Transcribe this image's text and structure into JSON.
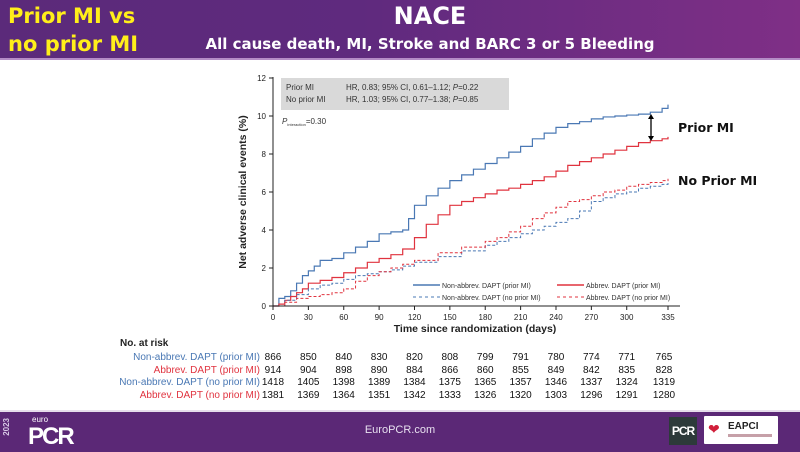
{
  "header": {
    "left_title_line1": "Prior MI vs",
    "left_title_line2": "no prior MI",
    "title": "NACE",
    "subtitle": "All cause death, MI, Stroke and BARC 3 or 5 Bleeding"
  },
  "colors": {
    "non_abbrev": "#4a78b4",
    "abbrev": "#e0333f",
    "header_bg": "#5b2a7a",
    "header_left_text": "#ffef1a",
    "footer_bg": "#5b2876"
  },
  "chart_data": {
    "type": "line",
    "subtype": "kaplan-meier cumulative incidence (step)",
    "xlabel": "Time since randomization (days)",
    "ylabel": "Net adverse clinical events (%)",
    "xlim": [
      0,
      335
    ],
    "ylim": [
      0,
      12
    ],
    "x_ticks": [
      0,
      30,
      60,
      90,
      120,
      150,
      180,
      210,
      240,
      270,
      300,
      335
    ],
    "y_ticks": [
      0,
      2,
      4,
      6,
      8,
      10,
      12
    ],
    "grid": false,
    "stats_box": [
      {
        "group": "Prior MI",
        "text": "HR, 0.83; 95% CI, 0.61–1.12; ",
        "p_label": "P",
        "p_value": "=0.22"
      },
      {
        "group": "No prior MI",
        "text": "HR, 1.03; 95% CI, 0.77–1.38; ",
        "p_label": "P",
        "p_value": "=0.85"
      }
    ],
    "p_interaction": {
      "label": "P",
      "subscript": "interaction",
      "value": "=0.30"
    },
    "annotations": [
      {
        "text": "Prior MI",
        "near": "right of prior MI curves, with double arrow between them"
      },
      {
        "text": "No Prior MI",
        "near": "right of no prior MI curves"
      }
    ],
    "legend": {
      "placement": "bottom-right",
      "entries": [
        {
          "label": "Non-abbrev. DAPT (prior MI)",
          "style": "solid",
          "color": "#4a78b4"
        },
        {
          "label": "Abbrev. DAPT (prior MI)",
          "style": "solid",
          "color": "#e0333f"
        },
        {
          "label": "Non-abbrev. DAPT (no prior MI)",
          "style": "dashed",
          "color": "#4a78b4"
        },
        {
          "label": "Abbrev. DAPT (no prior MI)",
          "style": "dashed",
          "color": "#e0333f"
        }
      ]
    },
    "series": [
      {
        "name": "Non-abbrev. DAPT (prior MI)",
        "style": "solid",
        "color": "#4a78b4",
        "x": [
          0,
          5,
          10,
          15,
          20,
          25,
          30,
          35,
          40,
          50,
          60,
          70,
          80,
          90,
          100,
          110,
          115,
          120,
          130,
          140,
          150,
          160,
          170,
          180,
          190,
          200,
          210,
          220,
          230,
          240,
          250,
          260,
          270,
          280,
          290,
          300,
          310,
          320,
          330,
          335
        ],
        "y": [
          0,
          0.4,
          0.5,
          0.8,
          1.2,
          1.6,
          1.85,
          2.1,
          2.4,
          2.5,
          2.8,
          3.1,
          3.4,
          3.8,
          3.9,
          4.0,
          4.6,
          5.3,
          5.8,
          6.2,
          6.6,
          6.9,
          7.2,
          7.5,
          7.8,
          8.1,
          8.4,
          8.8,
          9.1,
          9.4,
          9.6,
          9.7,
          9.85,
          9.95,
          10.0,
          10.05,
          10.1,
          10.2,
          10.4,
          10.6
        ]
      },
      {
        "name": "Abbrev. DAPT (prior MI)",
        "style": "solid",
        "color": "#e0333f",
        "x": [
          0,
          5,
          10,
          15,
          20,
          25,
          30,
          40,
          50,
          60,
          70,
          80,
          90,
          100,
          110,
          120,
          130,
          140,
          150,
          160,
          170,
          180,
          190,
          200,
          210,
          220,
          230,
          240,
          250,
          260,
          270,
          280,
          290,
          300,
          310,
          320,
          330,
          335
        ],
        "y": [
          0,
          0.1,
          0.3,
          0.5,
          0.7,
          0.9,
          1.2,
          1.35,
          1.5,
          1.75,
          2.0,
          2.3,
          2.5,
          2.7,
          3.0,
          3.6,
          4.3,
          4.8,
          5.3,
          5.5,
          5.7,
          5.9,
          6.1,
          6.2,
          6.4,
          6.6,
          6.8,
          7.1,
          7.4,
          7.6,
          7.8,
          8.0,
          8.2,
          8.4,
          8.6,
          8.7,
          8.8,
          8.9
        ]
      },
      {
        "name": "Non-abbrev. DAPT (no prior MI)",
        "style": "dashed",
        "color": "#4a78b4",
        "x": [
          0,
          10,
          20,
          30,
          40,
          50,
          60,
          70,
          80,
          90,
          100,
          110,
          120,
          140,
          160,
          180,
          190,
          200,
          210,
          220,
          230,
          240,
          250,
          260,
          270,
          280,
          290,
          300,
          310,
          320,
          330,
          335
        ],
        "y": [
          0,
          0.3,
          0.6,
          0.9,
          1.1,
          1.2,
          1.4,
          1.6,
          1.7,
          1.8,
          1.9,
          2.1,
          2.3,
          2.6,
          2.9,
          3.2,
          3.4,
          3.6,
          3.8,
          4.0,
          4.2,
          4.4,
          4.6,
          5.0,
          5.5,
          5.7,
          5.9,
          6.0,
          6.2,
          6.3,
          6.4,
          6.5
        ]
      },
      {
        "name": "Abbrev. DAPT (no prior MI)",
        "style": "dashed",
        "color": "#e0333f",
        "x": [
          0,
          10,
          20,
          30,
          40,
          50,
          60,
          70,
          80,
          90,
          100,
          110,
          120,
          140,
          160,
          180,
          190,
          200,
          210,
          220,
          230,
          240,
          250,
          260,
          270,
          280,
          290,
          300,
          310,
          320,
          330,
          335
        ],
        "y": [
          0,
          0.2,
          0.4,
          0.5,
          0.6,
          0.7,
          0.9,
          1.3,
          1.6,
          1.8,
          2.0,
          2.2,
          2.4,
          2.8,
          3.1,
          3.4,
          3.6,
          3.9,
          4.2,
          4.6,
          4.9,
          5.2,
          5.5,
          5.6,
          5.8,
          6.0,
          6.1,
          6.3,
          6.4,
          6.5,
          6.6,
          6.7
        ]
      }
    ]
  },
  "risk_table": {
    "title": "No. at risk",
    "rows": [
      {
        "label": "Non-abbrev. DAPT (prior MI)",
        "color": "#4a78b4",
        "values": [
          "866",
          "850",
          "840",
          "830",
          "820",
          "808",
          "799",
          "791",
          "780",
          "774",
          "771",
          "765"
        ]
      },
      {
        "label": "Abbrev. DAPT (prior MI)",
        "color": "#e0333f",
        "values": [
          "914",
          "904",
          "898",
          "890",
          "884",
          "866",
          "860",
          "855",
          "849",
          "842",
          "835",
          "828"
        ]
      },
      {
        "label": "Non-abbrev. DAPT (no prior MI)",
        "color": "#4a78b4",
        "values": [
          "1418",
          "1405",
          "1398",
          "1389",
          "1384",
          "1375",
          "1365",
          "1357",
          "1346",
          "1337",
          "1324",
          "1319"
        ]
      },
      {
        "label": "Abbrev. DAPT (no prior MI)",
        "color": "#e0333f",
        "values": [
          "1381",
          "1369",
          "1364",
          "1351",
          "1342",
          "1333",
          "1326",
          "1320",
          "1303",
          "1296",
          "1291",
          "1280"
        ]
      }
    ]
  },
  "footer": {
    "year": "2023",
    "logo_small": "euro",
    "logo_main": "PCR",
    "site": "EuroPCR.com",
    "badge_pcr": "PCR",
    "badge_eapci": "EAPCI"
  }
}
